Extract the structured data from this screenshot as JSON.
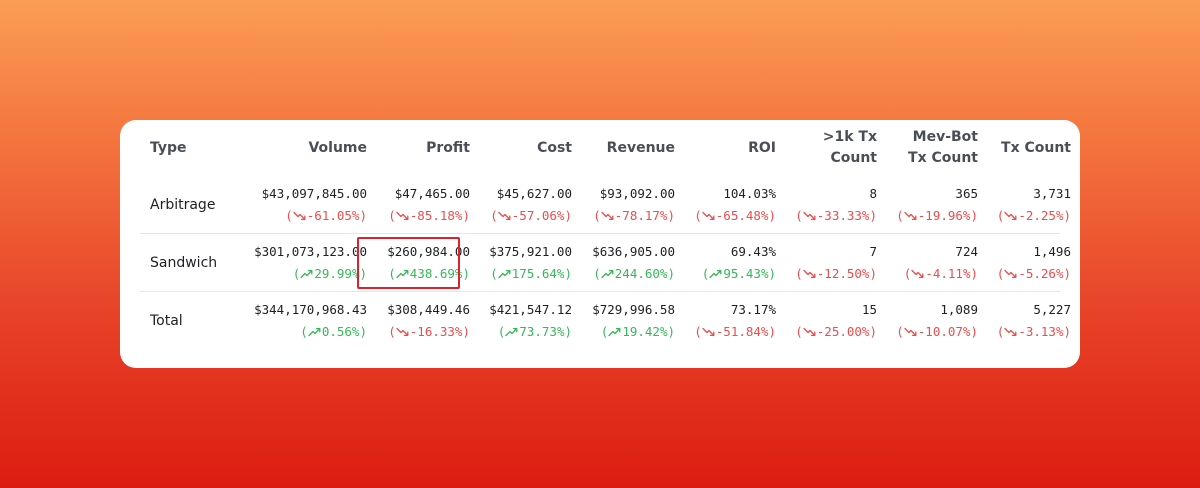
{
  "table": {
    "columns": [
      {
        "key": "type",
        "label_lines": [
          "Type"
        ]
      },
      {
        "key": "volume",
        "label_lines": [
          "Volume"
        ]
      },
      {
        "key": "profit",
        "label_lines": [
          "Profit"
        ]
      },
      {
        "key": "cost",
        "label_lines": [
          "Cost"
        ]
      },
      {
        "key": "revenue",
        "label_lines": [
          "Revenue"
        ]
      },
      {
        "key": "roi",
        "label_lines": [
          "ROI"
        ]
      },
      {
        "key": "gt1k_tx_count",
        "label_lines": [
          ">1k Tx",
          "Count"
        ]
      },
      {
        "key": "mev_bot_tx_count",
        "label_lines": [
          "Mev-Bot",
          "Tx Count"
        ]
      },
      {
        "key": "tx_count",
        "label_lines": [
          "Tx Count"
        ]
      }
    ],
    "rows": [
      {
        "type": "Arbitrage",
        "cells": [
          {
            "value": "$43,097,845.00",
            "change": "-61.05%",
            "dir": "down"
          },
          {
            "value": "$47,465.00",
            "change": "-85.18%",
            "dir": "down"
          },
          {
            "value": "$45,627.00",
            "change": "-57.06%",
            "dir": "down"
          },
          {
            "value": "$93,092.00",
            "change": "-78.17%",
            "dir": "down"
          },
          {
            "value": "104.03%",
            "change": "-65.48%",
            "dir": "down"
          },
          {
            "value": "8",
            "change": "-33.33%",
            "dir": "down"
          },
          {
            "value": "365",
            "change": "-19.96%",
            "dir": "down"
          },
          {
            "value": "3,731",
            "change": "-2.25%",
            "dir": "down"
          }
        ]
      },
      {
        "type": "Sandwich",
        "cells": [
          {
            "value": "$301,073,123.00",
            "change": "29.99%",
            "dir": "up"
          },
          {
            "value": "$260,984.00",
            "change": "438.69%",
            "dir": "up",
            "highlighted": true
          },
          {
            "value": "$375,921.00",
            "change": "175.64%",
            "dir": "up"
          },
          {
            "value": "$636,905.00",
            "change": "244.60%",
            "dir": "up"
          },
          {
            "value": "69.43%",
            "change": "95.43%",
            "dir": "up"
          },
          {
            "value": "7",
            "change": "-12.50%",
            "dir": "down"
          },
          {
            "value": "724",
            "change": "-4.11%",
            "dir": "down"
          },
          {
            "value": "1,496",
            "change": "-5.26%",
            "dir": "down"
          }
        ]
      },
      {
        "type": "Total",
        "cells": [
          {
            "value": "$344,170,968.43",
            "change": "0.56%",
            "dir": "up"
          },
          {
            "value": "$308,449.46",
            "change": "-16.33%",
            "dir": "down"
          },
          {
            "value": "$421,547.12",
            "change": "73.73%",
            "dir": "up"
          },
          {
            "value": "$729,996.58",
            "change": "19.42%",
            "dir": "up"
          },
          {
            "value": "73.17%",
            "change": "-51.84%",
            "dir": "down"
          },
          {
            "value": "15",
            "change": "-25.00%",
            "dir": "down"
          },
          {
            "value": "1,089",
            "change": "-10.07%",
            "dir": "down"
          },
          {
            "value": "5,227",
            "change": "-3.13%",
            "dir": "down"
          }
        ]
      }
    ]
  },
  "colors": {
    "up": "#35b857",
    "down": "#ee4b4b",
    "highlight_border": "#e0202a",
    "background_top": "#fb9d55",
    "background_bottom": "#dc1c10"
  },
  "icons": {
    "up": "trend-up-icon",
    "down": "trend-down-icon"
  }
}
